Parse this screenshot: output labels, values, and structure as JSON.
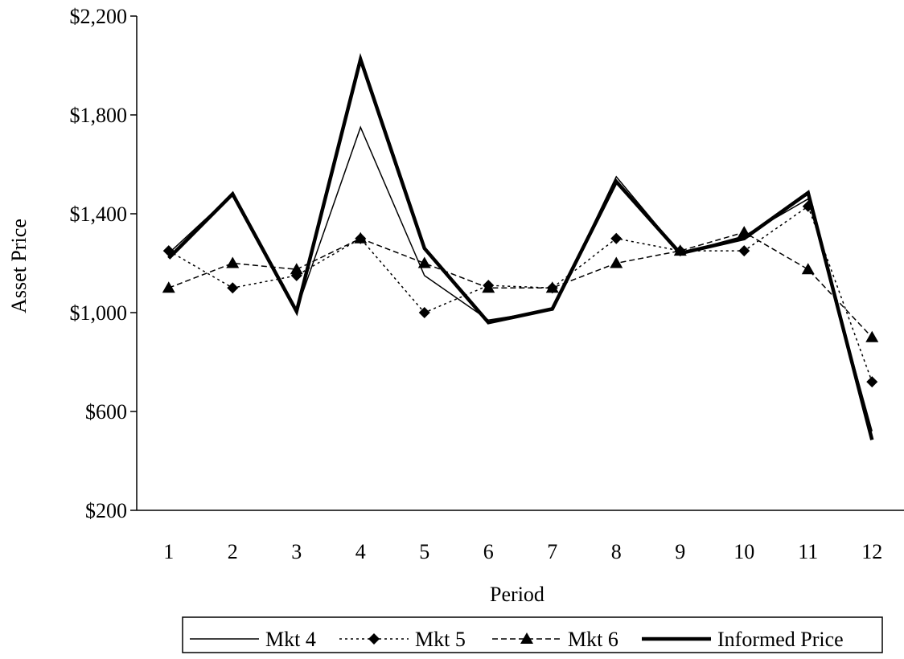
{
  "chart_data": {
    "type": "line",
    "xlabel": "Period",
    "ylabel": "Asset Price",
    "categories": [
      "1",
      "2",
      "3",
      "4",
      "5",
      "6",
      "7",
      "8",
      "9",
      "10",
      "11",
      "12"
    ],
    "ylim": [
      200,
      2200
    ],
    "yticks": [
      200,
      600,
      1000,
      1400,
      1800,
      2200
    ],
    "ytick_labels": [
      "$200",
      "$600",
      "$1,000",
      "$1,400",
      "$1,800",
      "$2,200"
    ],
    "grid": false,
    "legend_position": "bottom",
    "series": [
      {
        "name": "Mkt 4",
        "line": "thin-solid",
        "marker": "none",
        "values": [
          1240,
          1480,
          1010,
          1750,
          1150,
          970,
          1010,
          1550,
          1240,
          1310,
          1460,
          520
        ]
      },
      {
        "name": "Mkt 5",
        "line": "dotted",
        "marker": "diamond",
        "values": [
          1250,
          1100,
          1150,
          1300,
          1000,
          1110,
          1100,
          1300,
          1250,
          1250,
          1430,
          720
        ]
      },
      {
        "name": "Mkt 6",
        "line": "dashed",
        "marker": "triangle",
        "values": [
          1100,
          1200,
          1175,
          1300,
          1200,
          1100,
          1100,
          1200,
          1250,
          1325,
          1175,
          900
        ]
      },
      {
        "name": "Informed Price",
        "line": "thick-solid",
        "marker": "none",
        "values": [
          1220,
          1480,
          1005,
          2025,
          1260,
          960,
          1015,
          1530,
          1240,
          1300,
          1485,
          485
        ]
      }
    ]
  }
}
